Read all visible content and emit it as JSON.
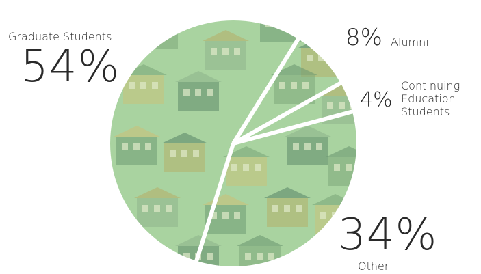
{
  "chart_data": {
    "type": "pie",
    "title": "",
    "slices": [
      {
        "label": "Graduate Students",
        "value": 54,
        "display": "54%"
      },
      {
        "label": "Alumni",
        "value": 8,
        "display": "8%"
      },
      {
        "label": "Continuing\nEducation\nStudents",
        "value": 4,
        "display": "4%"
      },
      {
        "label": "Other",
        "value": 34,
        "display": "34%"
      }
    ],
    "fill_color": "#a9d3a0",
    "separator_color": "#ffffff",
    "house_colors": [
      "#7da87a",
      "#8fb58c",
      "#6e9a72",
      "#b5b06a",
      "#c9c27a",
      "#5f8a6a"
    ]
  }
}
